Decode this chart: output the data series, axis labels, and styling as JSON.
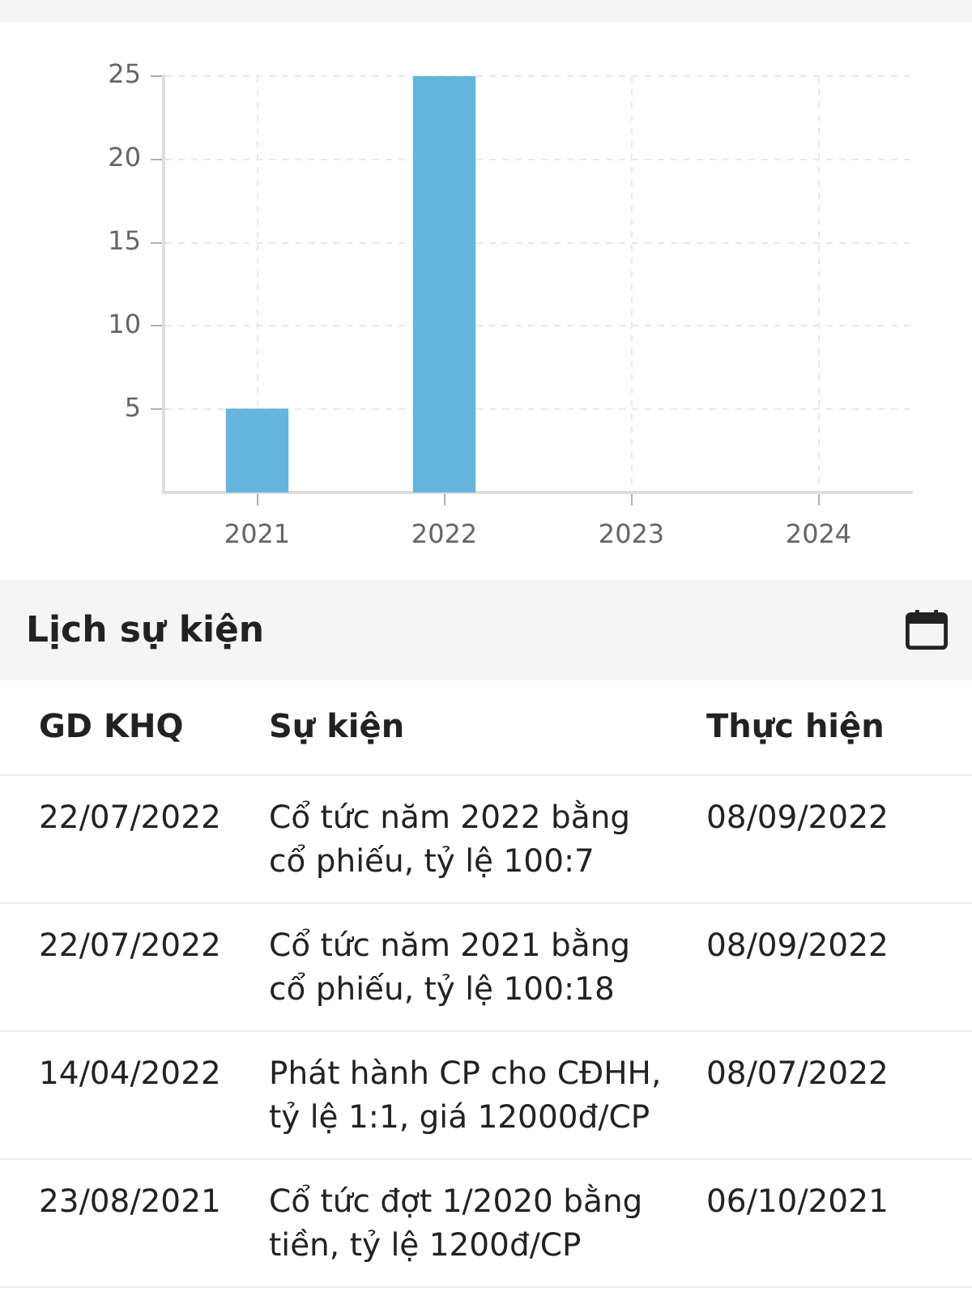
{
  "chart_data": [
    {
      "type": "bar",
      "categories": [
        "2021",
        "2022",
        "2023",
        "2024"
      ],
      "values": [
        5,
        25,
        null,
        null
      ],
      "color": "#64b5dc",
      "ylim": [
        0,
        25
      ],
      "yticks": [
        5,
        10,
        15,
        20,
        25
      ],
      "grid": true
    },
    {
      "type": "other",
      "title": "Lịch sự kiện",
      "annotations": [
        "GD KHQ",
        "Sự kiện",
        "Thực hiện",
        "22/07/2022",
        "Cổ tức năm 2022 bằng cổ phiếu, tỷ lệ 100:7",
        "08/09/2022",
        "22/07/2022",
        "Cổ tức năm 2021 bằng cổ phiếu, tỷ lệ 100:18",
        "08/09/2022",
        "14/04/2022",
        "Phát hành CP cho CĐHH, tỷ lệ 1:1, giá 12000đ/CP",
        "08/07/2022",
        "23/08/2021",
        "Cổ tức đợt 1/2020 bằng tiền, tỷ lệ 1200đ/CP",
        "06/10/2021"
      ]
    }
  ]
}
